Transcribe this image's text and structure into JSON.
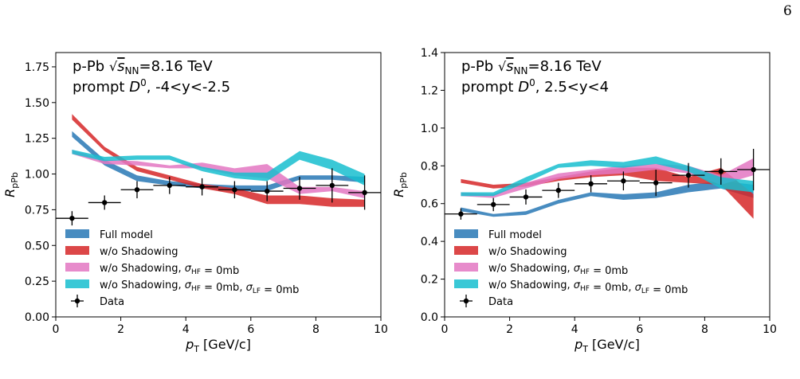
{
  "page_number": "6",
  "chart_data": [
    {
      "type": "area",
      "title_line1_prefix": "p-Pb ",
      "title_line1_sqrt": "√",
      "title_line1_s": "s",
      "title_line1_sub": "NN",
      "title_line1_suffix": "=8.16 TeV",
      "title_line2_prefix": "prompt ",
      "title_line2_D": "D",
      "title_line2_sup": "0",
      "title_line2_suffix": ", -4<y<-2.5",
      "xlabel_main": "p",
      "xlabel_sub": "T",
      "xlabel_unit": " [GeV/c]",
      "ylabel_main": "R",
      "ylabel_sub": "pPb",
      "xlim": [
        0,
        10
      ],
      "ylim": [
        0,
        1.85
      ],
      "xticks": [
        "0",
        "2",
        "4",
        "6",
        "8",
        "10"
      ],
      "yticks": [
        "0.00",
        "0.25",
        "0.50",
        "0.75",
        "1.00",
        "1.25",
        "1.50",
        "1.75"
      ],
      "xtick_values": [
        0,
        2,
        4,
        6,
        8,
        10
      ],
      "ytick_values": [
        0,
        0.25,
        0.5,
        0.75,
        1.0,
        1.25,
        1.5,
        1.75
      ],
      "grid": false,
      "legend_position": "bottom-left",
      "x": [
        0.5,
        1.5,
        2.5,
        3.5,
        4.5,
        5.5,
        6.5,
        7.5,
        8.5,
        9.5
      ],
      "series": [
        {
          "name": "Full model",
          "color": "#2878b5",
          "lower": [
            1.26,
            1.06,
            0.95,
            0.92,
            0.9,
            0.88,
            0.88,
            0.96,
            0.96,
            0.94
          ],
          "upper": [
            1.3,
            1.1,
            0.99,
            0.95,
            0.93,
            0.92,
            0.92,
            0.99,
            0.99,
            0.98
          ]
        },
        {
          "name": "w/o Shadowing",
          "color": "#d62728",
          "lower": [
            1.38,
            1.16,
            1.02,
            0.96,
            0.9,
            0.86,
            0.79,
            0.79,
            0.77,
            0.77
          ],
          "upper": [
            1.42,
            1.19,
            1.05,
            0.99,
            0.93,
            0.9,
            0.85,
            0.85,
            0.83,
            0.82
          ]
        },
        {
          "name": "w/o Shadowing, σHF=0mb",
          "color": "#e377c2",
          "lower": [
            1.14,
            1.07,
            1.06,
            1.04,
            1.04,
            0.99,
            0.97,
            0.86,
            0.88,
            0.83
          ],
          "upper": [
            1.17,
            1.1,
            1.09,
            1.06,
            1.08,
            1.04,
            1.07,
            0.91,
            0.91,
            0.88
          ]
        },
        {
          "name": "w/o Shadowing, σHF=0mb, σLF=0mb",
          "color": "#17becf",
          "lower": [
            1.14,
            1.09,
            1.1,
            1.1,
            1.02,
            0.97,
            0.95,
            1.1,
            1.03,
            0.92
          ],
          "upper": [
            1.17,
            1.12,
            1.13,
            1.13,
            1.05,
            1.01,
            1.01,
            1.16,
            1.1,
            1.0
          ]
        }
      ],
      "data": {
        "name": "Data",
        "x": [
          0.5,
          1.5,
          2.5,
          3.5,
          4.5,
          5.5,
          6.5,
          7.5,
          8.5,
          9.5
        ],
        "xerr": 0.5,
        "y": [
          0.69,
          0.8,
          0.89,
          0.92,
          0.91,
          0.89,
          0.88,
          0.9,
          0.92,
          0.87
        ],
        "yerr": [
          0.05,
          0.05,
          0.06,
          0.06,
          0.06,
          0.06,
          0.07,
          0.08,
          0.12,
          0.12
        ]
      }
    },
    {
      "type": "area",
      "title_line1_prefix": "p-Pb ",
      "title_line1_sqrt": "√",
      "title_line1_s": "s",
      "title_line1_sub": "NN",
      "title_line1_suffix": "=8.16 TeV",
      "title_line2_prefix": "prompt ",
      "title_line2_D": "D",
      "title_line2_sup": "0",
      "title_line2_suffix": ", 2.5<y<4",
      "xlabel_main": "p",
      "xlabel_sub": "T",
      "xlabel_unit": " [GeV/c]",
      "ylabel_main": "R",
      "ylabel_sub": "pPb",
      "xlim": [
        0,
        10
      ],
      "ylim": [
        0,
        1.4
      ],
      "xticks": [
        "0",
        "2",
        "4",
        "6",
        "8",
        "10"
      ],
      "yticks": [
        "0.0",
        "0.2",
        "0.4",
        "0.6",
        "0.8",
        "1.0",
        "1.2",
        "1.4"
      ],
      "xtick_values": [
        0,
        2,
        4,
        6,
        8,
        10
      ],
      "ytick_values": [
        0,
        0.2,
        0.4,
        0.6,
        0.8,
        1.0,
        1.2,
        1.4
      ],
      "grid": false,
      "legend_position": "bottom-left",
      "x": [
        0.5,
        1.5,
        2.5,
        3.5,
        4.5,
        5.5,
        6.5,
        7.5,
        8.5,
        9.5
      ],
      "series": [
        {
          "name": "Full model",
          "color": "#2878b5",
          "lower": [
            0.56,
            0.53,
            0.54,
            0.6,
            0.64,
            0.62,
            0.63,
            0.66,
            0.68,
            0.63
          ],
          "upper": [
            0.58,
            0.545,
            0.56,
            0.62,
            0.66,
            0.65,
            0.66,
            0.7,
            0.72,
            0.7
          ]
        },
        {
          "name": "w/o Shadowing",
          "color": "#d62728",
          "lower": [
            0.71,
            0.68,
            0.69,
            0.72,
            0.74,
            0.75,
            0.72,
            0.71,
            0.7,
            0.52
          ],
          "upper": [
            0.73,
            0.7,
            0.71,
            0.74,
            0.77,
            0.79,
            0.79,
            0.74,
            0.79,
            0.65
          ]
        },
        {
          "name": "w/o Shadowing, σHF=0mb",
          "color": "#e377c2",
          "lower": [
            0.64,
            0.63,
            0.68,
            0.73,
            0.75,
            0.76,
            0.78,
            0.76,
            0.7,
            0.75
          ],
          "upper": [
            0.66,
            0.65,
            0.71,
            0.76,
            0.78,
            0.8,
            0.81,
            0.8,
            0.75,
            0.84
          ]
        },
        {
          "name": "w/o Shadowing, σHF=0mb, σLF=0mb",
          "color": "#17becf",
          "lower": [
            0.64,
            0.64,
            0.71,
            0.79,
            0.8,
            0.79,
            0.81,
            0.77,
            0.68,
            0.66
          ],
          "upper": [
            0.66,
            0.66,
            0.74,
            0.81,
            0.83,
            0.82,
            0.85,
            0.8,
            0.74,
            0.72
          ]
        }
      ],
      "data": {
        "name": "Data",
        "x": [
          0.5,
          1.5,
          2.5,
          3.5,
          4.5,
          5.5,
          6.5,
          7.5,
          8.5,
          9.5
        ],
        "xerr": 0.5,
        "y": [
          0.545,
          0.595,
          0.635,
          0.67,
          0.705,
          0.72,
          0.71,
          0.75,
          0.77,
          0.78
        ],
        "yerr": [
          0.03,
          0.035,
          0.04,
          0.04,
          0.045,
          0.05,
          0.07,
          0.065,
          0.07,
          0.11
        ]
      }
    }
  ]
}
